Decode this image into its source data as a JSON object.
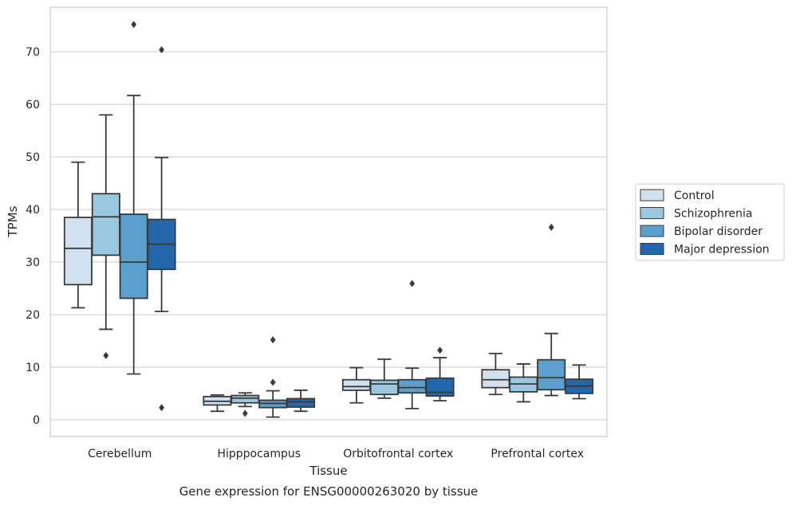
{
  "caption": "Gene expression for ENSG00000263020 by tissue",
  "chart_data": {
    "type": "box",
    "xlabel": "Tissue",
    "ylabel": "TPMs",
    "ylim": [
      -3.2,
      78.5
    ],
    "yticks": [
      0,
      10,
      20,
      30,
      40,
      50,
      60,
      70
    ],
    "grid": true,
    "legend_position": "right",
    "categories": [
      "Cerebellum",
      "Hipppocampus",
      "Orbitofrontal cortex",
      "Prefrontal cortex"
    ],
    "series": [
      {
        "name": "Control",
        "color": "#d1e1f0",
        "boxes": [
          {
            "whislo": 21.3,
            "q1": 25.7,
            "med": 32.6,
            "q3": 38.5,
            "whishi": 49.0,
            "fliers": []
          },
          {
            "whislo": 1.6,
            "q1": 2.8,
            "med": 3.5,
            "q3": 4.4,
            "whishi": 4.7,
            "fliers": []
          },
          {
            "whislo": 3.2,
            "q1": 5.6,
            "med": 6.3,
            "q3": 7.6,
            "whishi": 9.9,
            "fliers": []
          },
          {
            "whislo": 4.8,
            "q1": 6.1,
            "med": 7.6,
            "q3": 9.5,
            "whishi": 12.6,
            "fliers": []
          }
        ]
      },
      {
        "name": "Schizophrenia",
        "color": "#9ac8e0",
        "boxes": [
          {
            "whislo": 17.2,
            "q1": 31.3,
            "med": 38.6,
            "q3": 43.0,
            "whishi": 58.0,
            "fliers": [
              12.2
            ]
          },
          {
            "whislo": 2.5,
            "q1": 3.2,
            "med": 4.1,
            "q3": 4.6,
            "whishi": 5.1,
            "fliers": [
              1.2
            ]
          },
          {
            "whislo": 4.1,
            "q1": 4.8,
            "med": 6.8,
            "q3": 7.5,
            "whishi": 11.5,
            "fliers": []
          },
          {
            "whislo": 3.4,
            "q1": 5.3,
            "med": 6.8,
            "q3": 8.1,
            "whishi": 10.6,
            "fliers": []
          }
        ]
      },
      {
        "name": "Bipolar disorder",
        "color": "#5a9fcd",
        "boxes": [
          {
            "whislo": 8.7,
            "q1": 23.1,
            "med": 30.0,
            "q3": 39.1,
            "whishi": 61.7,
            "fliers": [
              75.2
            ]
          },
          {
            "whislo": 0.5,
            "q1": 2.3,
            "med": 3.1,
            "q3": 3.7,
            "whishi": 5.5,
            "fliers": [
              7.1,
              15.2
            ]
          },
          {
            "whislo": 2.1,
            "q1": 5.1,
            "med": 6.1,
            "q3": 7.6,
            "whishi": 9.8,
            "fliers": [
              25.9
            ]
          },
          {
            "whislo": 4.6,
            "q1": 5.7,
            "med": 8.0,
            "q3": 11.4,
            "whishi": 16.4,
            "fliers": [
              36.6
            ]
          }
        ]
      },
      {
        "name": "Major depression",
        "color": "#2467ab",
        "boxes": [
          {
            "whislo": 20.6,
            "q1": 28.6,
            "med": 33.4,
            "q3": 38.1,
            "whishi": 49.9,
            "fliers": [
              2.3,
              70.4
            ]
          },
          {
            "whislo": 1.6,
            "q1": 2.4,
            "med": 3.4,
            "q3": 4.0,
            "whishi": 5.6,
            "fliers": []
          },
          {
            "whislo": 3.6,
            "q1": 4.5,
            "med": 5.2,
            "q3": 7.9,
            "whishi": 11.8,
            "fliers": [
              13.2
            ]
          },
          {
            "whislo": 4.0,
            "q1": 5.0,
            "med": 6.4,
            "q3": 7.7,
            "whishi": 10.4,
            "fliers": []
          }
        ]
      }
    ]
  }
}
